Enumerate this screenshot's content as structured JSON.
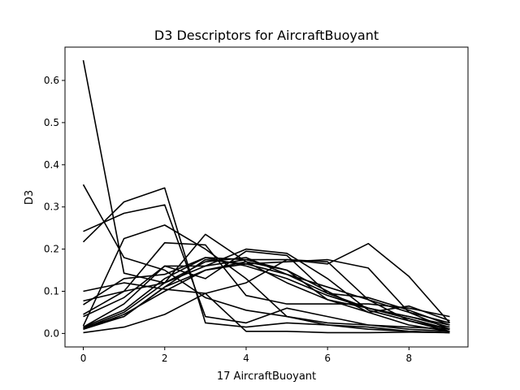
{
  "chart_data": {
    "type": "line",
    "title": "D3 Descriptors for AircraftBuoyant",
    "xlabel": "17 AircraftBuoyant",
    "ylabel": "D3",
    "xlim": [
      -0.45,
      9.45
    ],
    "ylim": [
      -0.032,
      0.679
    ],
    "xticks": [
      0,
      2,
      4,
      6,
      8
    ],
    "yticks": [
      0.0,
      0.1,
      0.2,
      0.3,
      0.4,
      0.5,
      0.6
    ],
    "ytick_labels": [
      "0.0",
      "0.1",
      "0.2",
      "0.3",
      "0.4",
      "0.5",
      "0.6"
    ],
    "grid": false,
    "color": "#000000",
    "x": [
      0,
      1,
      2,
      3,
      4,
      5,
      6,
      7,
      8,
      9
    ],
    "series": [
      {
        "values": [
          0.648,
          0.143,
          0.12,
          0.16,
          0.2,
          0.19,
          0.13,
          0.055,
          0.03,
          0.005
        ]
      },
      {
        "values": [
          0.353,
          0.18,
          0.15,
          0.085,
          0.055,
          0.04,
          0.02,
          0.01,
          0.005,
          0.002
        ]
      },
      {
        "values": [
          0.242,
          0.285,
          0.305,
          0.04,
          0.025,
          0.06,
          0.04,
          0.02,
          0.01,
          0.005
        ]
      },
      {
        "values": [
          0.217,
          0.312,
          0.345,
          0.025,
          0.015,
          0.025,
          0.02,
          0.015,
          0.005,
          0.002
        ]
      },
      {
        "values": [
          0.1,
          0.12,
          0.105,
          0.095,
          0.005,
          0.005,
          0.002,
          0.002,
          0.003,
          0.002
        ]
      },
      {
        "values": [
          0.077,
          0.1,
          0.12,
          0.235,
          0.17,
          0.12,
          0.08,
          0.06,
          0.035,
          0.01
        ]
      },
      {
        "values": [
          0.068,
          0.13,
          0.14,
          0.18,
          0.175,
          0.15,
          0.1,
          0.05,
          0.02,
          0.005
        ]
      },
      {
        "values": [
          0.045,
          0.1,
          0.215,
          0.21,
          0.09,
          0.07,
          0.07,
          0.07,
          0.06,
          0.04
        ]
      },
      {
        "values": [
          0.04,
          0.085,
          0.16,
          0.13,
          0.195,
          0.185,
          0.095,
          0.085,
          0.055,
          0.02
        ]
      },
      {
        "values": [
          0.018,
          0.225,
          0.257,
          0.2,
          0.13,
          0.04,
          0.025,
          0.02,
          0.015,
          0.01
        ]
      },
      {
        "values": [
          0.015,
          0.04,
          0.11,
          0.175,
          0.165,
          0.14,
          0.11,
          0.08,
          0.05,
          0.025
        ]
      },
      {
        "values": [
          0.012,
          0.05,
          0.12,
          0.17,
          0.18,
          0.14,
          0.095,
          0.06,
          0.04,
          0.015
        ]
      },
      {
        "values": [
          0.015,
          0.055,
          0.13,
          0.18,
          0.16,
          0.13,
          0.09,
          0.06,
          0.04,
          0.02
        ]
      },
      {
        "values": [
          0.01,
          0.045,
          0.1,
          0.15,
          0.165,
          0.17,
          0.175,
          0.155,
          0.05,
          0.01
        ]
      },
      {
        "values": [
          0.015,
          0.07,
          0.16,
          0.16,
          0.175,
          0.175,
          0.165,
          0.213,
          0.135,
          0.025
        ]
      },
      {
        "values": [
          0.01,
          0.04,
          0.11,
          0.15,
          0.17,
          0.15,
          0.08,
          0.05,
          0.065,
          0.03
        ]
      },
      {
        "values": [
          0.002,
          0.015,
          0.045,
          0.095,
          0.12,
          0.175,
          0.17,
          0.08,
          0.03,
          0.01
        ]
      }
    ]
  }
}
